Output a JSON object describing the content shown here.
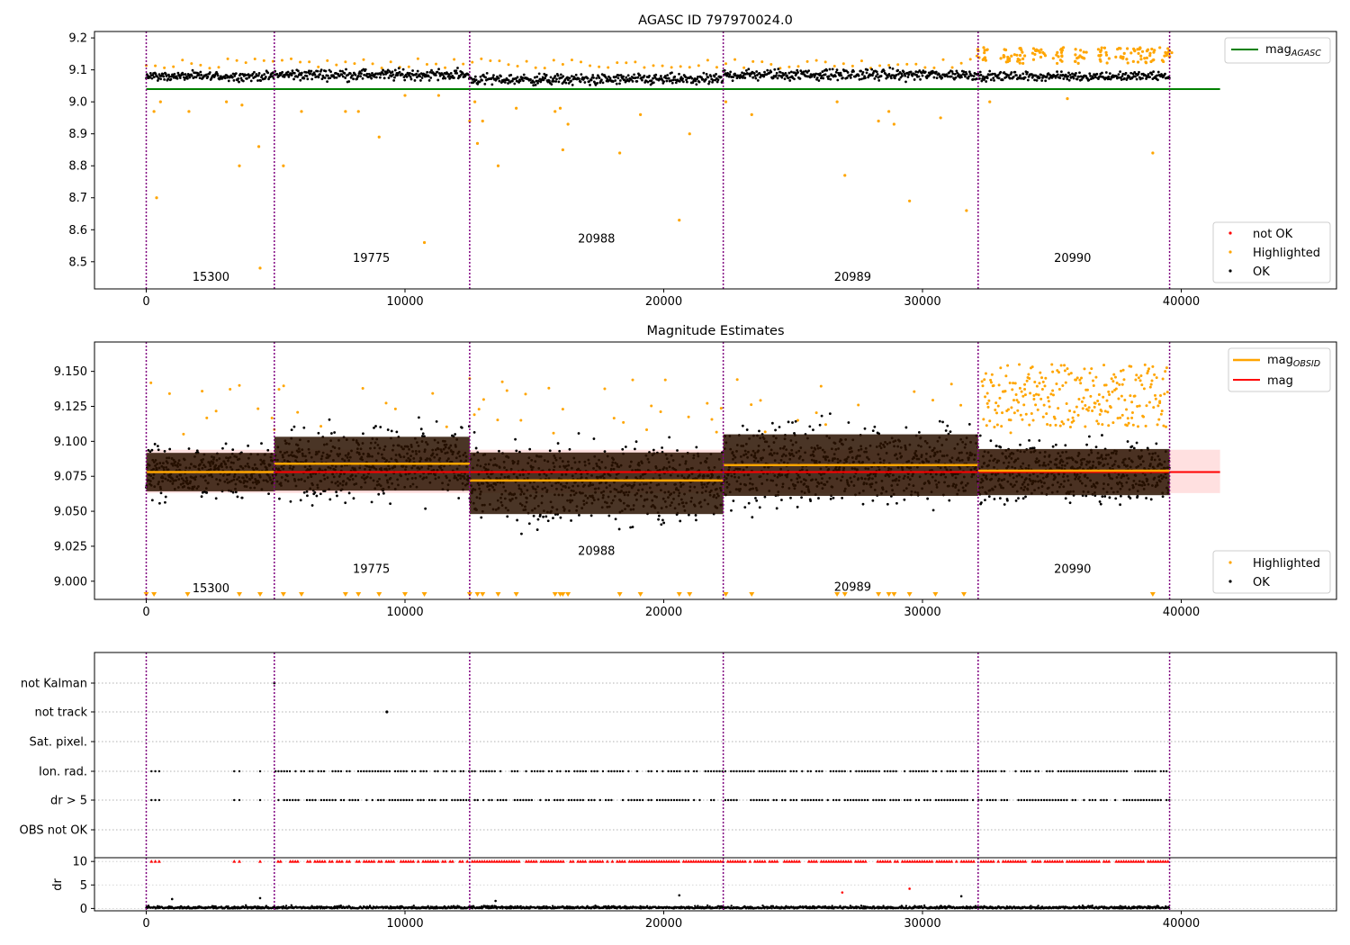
{
  "chart_data": [
    {
      "panel": "agasc",
      "type": "scatter",
      "title": "AGASC ID 797970024.0",
      "xlim": [
        -2000,
        46000
      ],
      "ylim": [
        8.415,
        9.22
      ],
      "x_ticks": [
        0,
        10000,
        20000,
        30000,
        40000
      ],
      "x_tick_labels": [
        "0",
        "10000",
        "20000",
        "30000",
        "40000"
      ],
      "y_ticks": [
        8.5,
        8.6,
        8.7,
        8.8,
        8.9,
        9.0,
        9.1,
        9.2
      ],
      "y_tick_labels": [
        "8.5",
        "8.6",
        "8.7",
        "8.8",
        "8.9",
        "9.0",
        "9.1",
        "9.2"
      ],
      "obsid_boundaries": [
        0,
        4950,
        12500,
        22300,
        32150,
        39550
      ],
      "obsid_labels": [
        {
          "x": 2500,
          "y": 8.44,
          "text": "15300"
        },
        {
          "x": 8700,
          "y": 8.5,
          "text": "19775"
        },
        {
          "x": 17400,
          "y": 8.56,
          "text": "20988"
        },
        {
          "x": 27300,
          "y": 8.44,
          "text": "20989"
        },
        {
          "x": 35800,
          "y": 8.5,
          "text": "20990"
        }
      ],
      "mag_agasc": {
        "value": 9.04,
        "x_range": [
          0,
          41500
        ],
        "color": "#008000"
      },
      "ok_band": [
        {
          "x0": 0,
          "x1": 4950,
          "center": 9.08,
          "half": 0.02
        },
        {
          "x0": 4950,
          "x1": 12500,
          "center": 9.085,
          "half": 0.025
        },
        {
          "x0": 12500,
          "x1": 22300,
          "center": 9.07,
          "half": 0.025
        },
        {
          "x0": 22300,
          "x1": 32150,
          "center": 9.085,
          "half": 0.025
        },
        {
          "x0": 32150,
          "x1": 39550,
          "center": 9.08,
          "half": 0.02
        }
      ],
      "highlighted_points": [
        [
          300,
          8.97
        ],
        [
          400,
          8.7
        ],
        [
          550,
          9.0
        ],
        [
          1650,
          8.97
        ],
        [
          3100,
          9.0
        ],
        [
          3600,
          8.8
        ],
        [
          3700,
          8.99
        ],
        [
          4350,
          8.86
        ],
        [
          4400,
          8.48
        ],
        [
          5300,
          8.8
        ],
        [
          6000,
          8.97
        ],
        [
          7700,
          8.97
        ],
        [
          8200,
          8.97
        ],
        [
          9000,
          8.89
        ],
        [
          10000,
          9.02
        ],
        [
          10750,
          8.56
        ],
        [
          11300,
          9.02
        ],
        [
          12500,
          8.94
        ],
        [
          12700,
          9.0
        ],
        [
          12800,
          8.87
        ],
        [
          13000,
          8.94
        ],
        [
          13600,
          8.8
        ],
        [
          14300,
          8.98
        ],
        [
          15800,
          8.97
        ],
        [
          16000,
          8.98
        ],
        [
          16100,
          8.85
        ],
        [
          16300,
          8.93
        ],
        [
          18300,
          8.84
        ],
        [
          19100,
          8.96
        ],
        [
          20600,
          8.63
        ],
        [
          21000,
          8.9
        ],
        [
          22400,
          9.0
        ],
        [
          23400,
          8.96
        ],
        [
          26700,
          9.0
        ],
        [
          27000,
          8.77
        ],
        [
          28300,
          8.94
        ],
        [
          28700,
          8.97
        ],
        [
          28900,
          8.93
        ],
        [
          29500,
          8.69
        ],
        [
          30700,
          8.95
        ],
        [
          31700,
          8.66
        ],
        [
          32600,
          9.0
        ],
        [
          35600,
          9.01
        ],
        [
          38900,
          8.84
        ]
      ],
      "highlighted_top_clusters": [
        32300,
        33200,
        33800,
        34500,
        35300,
        36100,
        37000,
        37700,
        38300,
        38800,
        39400
      ],
      "legend_mag": "mag",
      "legend_mag_sub": "AGASC",
      "legend_points": [
        "not OK",
        "Highlighted",
        "OK"
      ],
      "colors": {
        "ok": "#000000",
        "highlighted": "#ffa500",
        "not_ok": "#ff0000",
        "boundary": "#800080"
      }
    },
    {
      "panel": "estimates",
      "type": "scatter",
      "title": "Magnitude Estimates",
      "xlim": [
        -2000,
        46000
      ],
      "ylim": [
        8.987,
        9.171
      ],
      "x_ticks": [
        0,
        10000,
        20000,
        30000,
        40000
      ],
      "x_tick_labels": [
        "0",
        "10000",
        "20000",
        "30000",
        "40000"
      ],
      "y_ticks": [
        9.0,
        9.025,
        9.05,
        9.075,
        9.1,
        9.125,
        9.15
      ],
      "y_tick_labels": [
        "9.000",
        "9.025",
        "9.050",
        "9.075",
        "9.100",
        "9.125",
        "9.150"
      ],
      "obsid_boundaries": [
        0,
        4950,
        12500,
        22300,
        32150,
        39550
      ],
      "obsid_labels": [
        {
          "x": 2500,
          "y": 8.992,
          "text": "15300"
        },
        {
          "x": 8700,
          "y": 9.006,
          "text": "19775"
        },
        {
          "x": 17400,
          "y": 9.019,
          "text": "20988"
        },
        {
          "x": 27300,
          "y": 8.993,
          "text": "20989"
        },
        {
          "x": 35800,
          "y": 9.006,
          "text": "20990"
        }
      ],
      "mag": {
        "value": 9.078,
        "x_range": [
          0,
          41500
        ],
        "band": [
          9.063,
          9.094
        ],
        "color": "#ff0000"
      },
      "mag_obsid": [
        {
          "x0": 0,
          "x1": 4950,
          "value": 9.078
        },
        {
          "x0": 4950,
          "x1": 12500,
          "value": 9.084
        },
        {
          "x0": 12500,
          "x1": 22300,
          "value": 9.072
        },
        {
          "x0": 22300,
          "x1": 32150,
          "value": 9.083
        },
        {
          "x0": 32150,
          "x1": 39550,
          "value": 9.079
        }
      ],
      "ok_band": [
        {
          "x0": 0,
          "x1": 4950,
          "center": 9.078,
          "half": 0.025
        },
        {
          "x0": 4950,
          "x1": 12500,
          "center": 9.084,
          "half": 0.035
        },
        {
          "x0": 12500,
          "x1": 22300,
          "center": 9.07,
          "half": 0.04
        },
        {
          "x0": 22300,
          "x1": 32150,
          "center": 9.083,
          "half": 0.04
        },
        {
          "x0": 32150,
          "x1": 39550,
          "center": 9.078,
          "half": 0.03
        }
      ],
      "below_range_markers_x": [
        0,
        300,
        1600,
        3600,
        4400,
        5300,
        6000,
        7700,
        8200,
        9000,
        10000,
        10750,
        12500,
        12800,
        13000,
        13600,
        14300,
        15800,
        16000,
        16100,
        16300,
        18300,
        19100,
        20600,
        21000,
        22400,
        23400,
        26700,
        27000,
        28300,
        28700,
        28900,
        29500,
        30500,
        31600,
        38900
      ],
      "legend_mag_obsid": "mag",
      "legend_mag_obsid_sub": "OBSID",
      "legend_mag": "mag",
      "legend_points": [
        "Highlighted",
        "OK"
      ]
    },
    {
      "panel": "flags",
      "type": "scatter",
      "xlim": [
        -2000,
        46000
      ],
      "x_ticks": [
        0,
        10000,
        20000,
        30000,
        40000
      ],
      "x_tick_labels": [
        "0",
        "10000",
        "20000",
        "30000",
        "40000"
      ],
      "obsid_boundaries": [
        0,
        4950,
        12500,
        22300,
        32150,
        39550
      ],
      "flag_rows": [
        "not Kalman",
        "not track",
        "Sat. pixel.",
        "Ion. rad.",
        "dr > 5",
        "OBS not OK"
      ],
      "flag_points": {
        "not Kalman": [
          4950
        ],
        "not track": [
          9300
        ],
        "Sat. pixel.": [],
        "Ion. rad.": "sparse-dense",
        "dr > 5": "sparse-dense"
      },
      "dr_ylabel": "dr",
      "dr_ylim": [
        -0.5,
        10.8
      ],
      "dr_ticks": [
        0,
        5,
        10
      ],
      "dr_tick_labels": [
        "0",
        "5",
        "10"
      ],
      "dr_outliers": [
        [
          26900,
          3.4
        ],
        [
          29500,
          4.2
        ],
        [
          31500,
          2.6
        ],
        [
          13500,
          1.6
        ],
        [
          20600,
          2.8
        ],
        [
          1000,
          2.0
        ],
        [
          4400,
          2.2
        ]
      ]
    }
  ]
}
